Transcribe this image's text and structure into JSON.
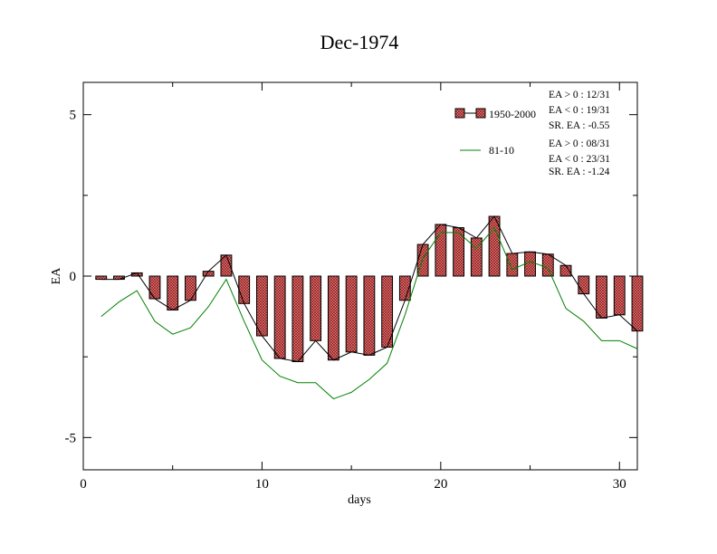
{
  "chart_data": {
    "type": "bar",
    "title": "Dec-1974",
    "xlabel": "days",
    "ylabel": "EA",
    "xlim": [
      0,
      31
    ],
    "ylim": [
      -6,
      6
    ],
    "xticks": [
      0,
      10,
      20,
      30
    ],
    "yticks": [
      -5,
      0,
      5
    ],
    "grid": false,
    "legend_position": "top-right",
    "x": [
      1,
      2,
      3,
      4,
      5,
      6,
      7,
      8,
      9,
      10,
      11,
      12,
      13,
      14,
      15,
      16,
      17,
      18,
      19,
      20,
      21,
      22,
      23,
      24,
      25,
      26,
      27,
      28,
      29,
      30,
      31
    ],
    "series": [
      {
        "name": "1950-2000",
        "kind": "bar-with-line",
        "color": "#ff6b6b",
        "values": [
          -0.1,
          -0.1,
          0.1,
          -0.7,
          -1.05,
          -0.75,
          0.15,
          0.65,
          -0.85,
          -1.85,
          -2.55,
          -2.65,
          -2.0,
          -2.6,
          -2.35,
          -2.45,
          -2.2,
          -0.75,
          0.98,
          1.6,
          1.5,
          1.18,
          1.85,
          0.7,
          0.75,
          0.68,
          0.33,
          -0.55,
          -1.3,
          -1.2,
          -1.7
        ]
      },
      {
        "name": "81-10",
        "kind": "line",
        "color": "#008000",
        "values": [
          -1.25,
          -0.8,
          -0.45,
          -1.4,
          -1.8,
          -1.6,
          -0.95,
          -0.1,
          -1.4,
          -2.6,
          -3.1,
          -3.3,
          -3.3,
          -3.8,
          -3.6,
          -3.2,
          -2.7,
          -1.2,
          0.55,
          1.35,
          1.35,
          0.85,
          1.5,
          0.2,
          0.45,
          0.25,
          -1.0,
          -1.4,
          -2.0,
          -2.0,
          -2.25
        ]
      }
    ],
    "annotations": {
      "group1": [
        "EA > 0 : 12/31",
        "EA < 0 : 19/31",
        "SR. EA : -0.55"
      ],
      "group2": [
        "EA > 0 : 08/31",
        "EA < 0 : 23/31",
        "SR. EA : -1.24"
      ]
    }
  }
}
